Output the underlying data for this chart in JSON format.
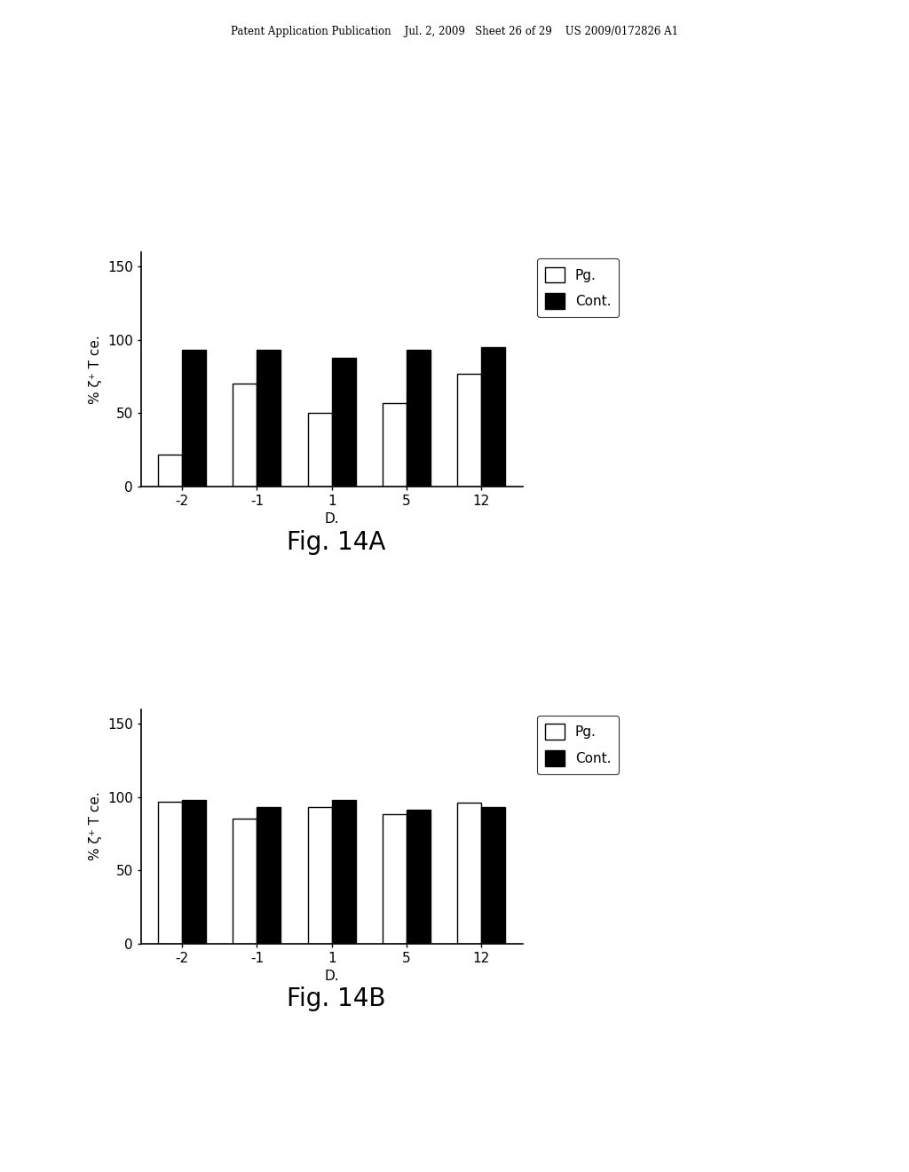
{
  "fig14A": {
    "categories": [
      "-2",
      "-1",
      "1",
      "5",
      "12"
    ],
    "pg_values": [
      22,
      70,
      50,
      57,
      77
    ],
    "cont_values": [
      93,
      93,
      88,
      93,
      95
    ],
    "ylabel": "% ζ⁺ T ce.",
    "xlabel": "D.",
    "ylim": [
      0,
      160
    ],
    "yticks": [
      0,
      50,
      100,
      150
    ],
    "fig_label": "Fig. 14A"
  },
  "fig14B": {
    "categories": [
      "-2",
      "-1",
      "1",
      "5",
      "12"
    ],
    "pg_values": [
      97,
      85,
      93,
      88,
      96
    ],
    "cont_values": [
      98,
      93,
      98,
      91,
      93
    ],
    "ylabel": "% ζ⁺ T ce.",
    "xlabel": "D.",
    "ylim": [
      0,
      160
    ],
    "yticks": [
      0,
      50,
      100,
      150
    ],
    "fig_label": "Fig. 14B"
  },
  "legend_pg": "Pg.",
  "legend_cont": "Cont.",
  "bar_width": 0.32,
  "pg_color": "white",
  "cont_color": "black",
  "edge_color": "black",
  "background_color": "white",
  "header_text": "Patent Application Publication    Jul. 2, 2009   Sheet 26 of 29    US 2009/0172826 A1"
}
